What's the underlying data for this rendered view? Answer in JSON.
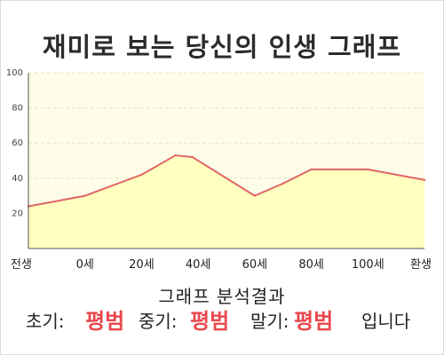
{
  "title": "재미로 보는 당신의 인생 그래프",
  "result": {
    "heading": "그래프 분석결과",
    "early_label": "초기:",
    "early_value": "평범",
    "middle_label": "중기:",
    "middle_value": "평범",
    "late_label": "말기:",
    "late_value": "평범",
    "suffix": "입니다"
  },
  "colors": {
    "line": "#e06666",
    "fill": "#ffffc0",
    "plot_bg": "#fdfde8",
    "result_value": "#e8484d"
  },
  "chart_data": {
    "type": "area",
    "title": "",
    "xlabel": "",
    "ylabel": "",
    "ylim": [
      0,
      100
    ],
    "yticks": [
      20,
      40,
      60,
      80,
      100
    ],
    "xticks": [
      {
        "x": -20,
        "label": "전생"
      },
      {
        "x": 0,
        "label": "0세"
      },
      {
        "x": 20,
        "label": "20세"
      },
      {
        "x": 40,
        "label": "40세"
      },
      {
        "x": 60,
        "label": "60세"
      },
      {
        "x": 80,
        "label": "80세"
      },
      {
        "x": 100,
        "label": "100세"
      },
      {
        "x": 120,
        "label": "환생"
      }
    ],
    "xlim": [
      -20,
      120
    ],
    "grid": true,
    "x": [
      -20,
      0,
      20,
      32,
      38,
      60,
      70,
      80,
      100,
      120
    ],
    "values": [
      24,
      30,
      42,
      53,
      52,
      30,
      37,
      45,
      45,
      39
    ]
  }
}
